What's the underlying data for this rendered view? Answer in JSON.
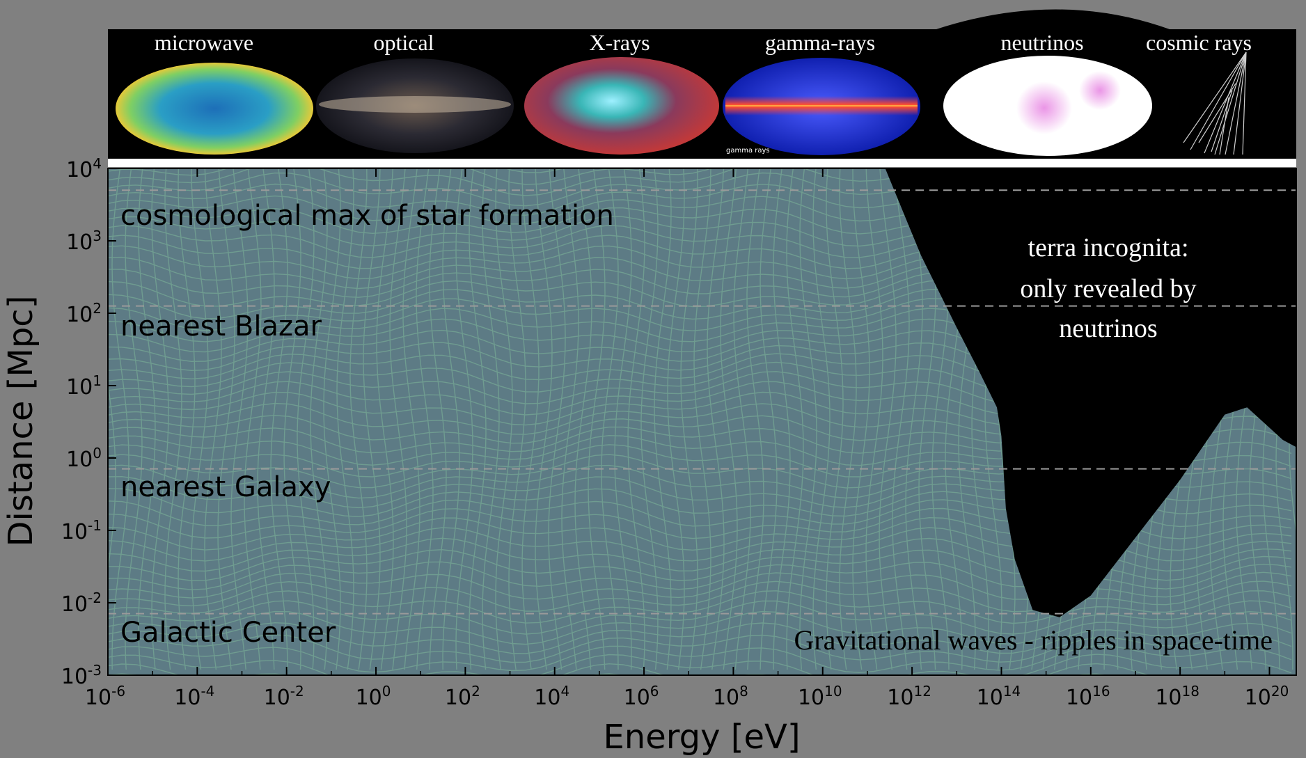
{
  "colors": {
    "page_bg": "#808080",
    "plot_bg": "#5d7b85",
    "grid_line": "#7fb79a",
    "unknown_region": "#000000",
    "dashed_line": "#9a9a9a",
    "banner_bg": "#000000",
    "banner_divider": "#ffffff"
  },
  "banner": {
    "labels": [
      "microwave",
      "optical",
      "X-rays",
      "gamma-rays",
      "neutrinos",
      "cosmic rays"
    ],
    "gamma_caption": "gamma rays"
  },
  "chart_data": {
    "type": "area",
    "xlabel": "Energy [eV]",
    "ylabel": "Distance [Mpc]",
    "x_scale": "log",
    "y_scale": "log",
    "xlim_log10": [
      -6,
      20.6
    ],
    "ylim_log10": [
      -3,
      4
    ],
    "x_tick_exponents": [
      "-6",
      "-4",
      "-2",
      "0",
      "2",
      "4",
      "6",
      "8",
      "10",
      "12",
      "14",
      "16",
      "18",
      "20"
    ],
    "y_tick_exponents": [
      "4",
      "3",
      "2",
      "1",
      "0",
      "-1",
      "-2",
      "-3"
    ],
    "tick_base": "10",
    "reference_lines": [
      {
        "label": "cosmological max of star formation",
        "y_log10": 3.7
      },
      {
        "label": "nearest Blazar",
        "y_log10": 2.1
      },
      {
        "label": "nearest Galaxy",
        "y_log10": -0.15
      },
      {
        "label": "Galactic Center",
        "y_log10": -2.15
      }
    ],
    "horizon_boundary": {
      "description_label": "terra incognita:|only revealed by|neutrinos",
      "x_log10": [
        11.4,
        12.2,
        13.0,
        13.5,
        13.9,
        14.0,
        14.1,
        14.3,
        14.7,
        15.3,
        16.0,
        17.0,
        18.0,
        19.0,
        19.5,
        20.3,
        20.6
      ],
      "y_log10": [
        4.0,
        2.8,
        1.8,
        1.2,
        0.7,
        0.3,
        -0.7,
        -1.4,
        -2.1,
        -2.2,
        -1.9,
        -1.1,
        -0.3,
        0.6,
        0.7,
        0.25,
        0.15
      ]
    },
    "gw_label": "Gravitational waves - ripples in space-time",
    "grid": false,
    "legend": "none"
  }
}
